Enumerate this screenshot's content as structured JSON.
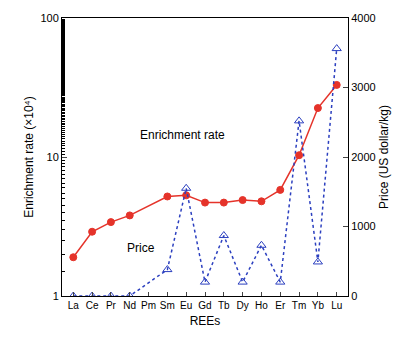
{
  "chart_data": {
    "type": "line",
    "x_label": "REEs",
    "y_label": "Enrichment rate (×10⁴)",
    "y2_label": "Price (US dollar/kg)",
    "categories": [
      "La",
      "Ce",
      "Pr",
      "Nd",
      "Pm",
      "Sm",
      "Eu",
      "Gd",
      "Tb",
      "Dy",
      "Ho",
      "Er",
      "Tm",
      "Yb",
      "Lu"
    ],
    "series": [
      {
        "name": "Enrichment rate",
        "color": "#e5332a",
        "marker": "circle",
        "line_style": "solid",
        "values": [
          1.9,
          2.9,
          3.4,
          3.8,
          null,
          5.2,
          5.3,
          4.7,
          4.7,
          4.9,
          4.8,
          5.8,
          10.3,
          22.5,
          33
        ]
      },
      {
        "name": "Price",
        "color": "#2b3fbf",
        "marker": "triangle-up-open",
        "line_style": "dot",
        "axis": "y2",
        "values": [
          0,
          0,
          0,
          0,
          null,
          380,
          1550,
          200,
          870,
          200,
          730,
          200,
          2520,
          490,
          3560
        ]
      }
    ],
    "annotations": [
      "Enrichment rate",
      "Price"
    ],
    "log": "y",
    "ylim": [
      1,
      100
    ],
    "yticks": [
      1,
      10,
      100
    ],
    "y2lim": [
      0,
      4000
    ],
    "y2ticks": [
      0,
      1000,
      2000,
      3000,
      4000
    ],
    "grid": false
  }
}
